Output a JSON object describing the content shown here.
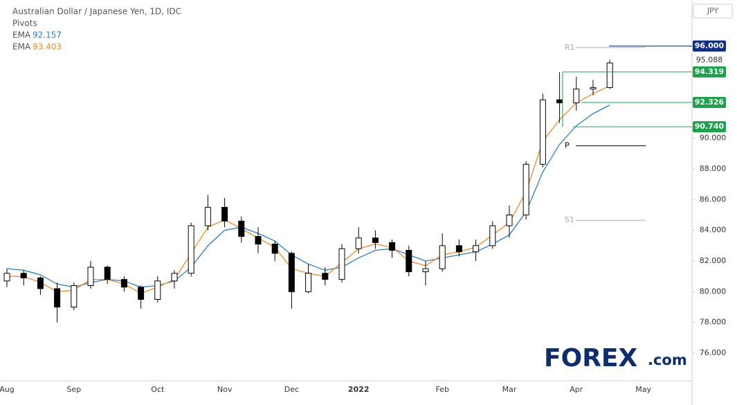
{
  "chart_data": {
    "type": "candlestick",
    "title": "Australian Dollar / Japanese Yen, 1D, IDC",
    "currency": "JPY",
    "categories": [
      "Aug",
      null,
      null,
      null,
      "Sep",
      null,
      null,
      null,
      null,
      "Oct",
      null,
      null,
      null,
      "Nov",
      null,
      null,
      null,
      "Dec",
      null,
      null,
      null,
      "2022",
      null,
      null,
      null,
      null,
      "Feb",
      null,
      null,
      null,
      "Mar",
      null,
      null,
      null,
      "Apr",
      null,
      null,
      null,
      "May",
      null,
      null
    ],
    "open": [
      80.7,
      81.2,
      80.9,
      80.2,
      79.0,
      80.4,
      81.6,
      80.8,
      80.3,
      79.5,
      80.7,
      81.2,
      84.3,
      85.5,
      84.6,
      83.6,
      83.1,
      82.5,
      80.0,
      81.2,
      80.8,
      82.8,
      83.5,
      83.2,
      82.7,
      81.3,
      81.5,
      83.0,
      82.6,
      83.0,
      84.3,
      85.0,
      88.3,
      92.5,
      92.3,
      93.2,
      93.3,
      null,
      null,
      null,
      null
    ],
    "high": [
      81.5,
      81.4,
      81.0,
      80.6,
      80.6,
      82.0,
      81.7,
      81.0,
      80.4,
      81.0,
      81.4,
      84.5,
      86.3,
      86.1,
      84.9,
      84.2,
      83.3,
      82.6,
      81.8,
      81.6,
      83.1,
      84.2,
      84.0,
      83.4,
      83.0,
      82.0,
      83.8,
      83.4,
      83.4,
      84.6,
      85.6,
      88.5,
      92.9,
      94.3,
      94.0,
      93.8,
      95.1,
      null,
      null,
      null,
      null
    ],
    "low": [
      80.3,
      80.4,
      79.8,
      78.0,
      78.8,
      80.2,
      80.5,
      80.0,
      78.9,
      79.3,
      80.2,
      81.0,
      84.0,
      84.2,
      83.2,
      82.5,
      82.0,
      78.9,
      79.9,
      80.4,
      80.6,
      82.5,
      82.8,
      82.2,
      81.0,
      80.4,
      81.3,
      82.3,
      82.0,
      82.8,
      83.5,
      84.7,
      88.1,
      91.0,
      91.8,
      92.8,
      93.2,
      null,
      null,
      null,
      null
    ],
    "close": [
      81.2,
      80.9,
      80.2,
      79.0,
      80.4,
      81.6,
      80.8,
      80.3,
      79.5,
      80.7,
      81.2,
      84.3,
      85.5,
      84.6,
      83.6,
      83.1,
      82.5,
      80.0,
      81.2,
      80.8,
      82.8,
      83.5,
      83.2,
      82.7,
      81.3,
      81.5,
      83.0,
      82.6,
      83.0,
      84.3,
      85.0,
      88.3,
      92.5,
      92.3,
      93.2,
      93.3,
      94.9,
      null,
      null,
      null,
      null
    ],
    "series": [
      {
        "name": "EMA",
        "color": "#2a7fc1",
        "values": [
          81.5,
          81.4,
          81.1,
          80.5,
          80.3,
          80.6,
          80.8,
          80.7,
          80.3,
          80.4,
          80.7,
          81.6,
          83.0,
          84.0,
          84.2,
          83.8,
          83.3,
          82.4,
          81.8,
          81.4,
          81.6,
          82.2,
          82.7,
          82.8,
          82.4,
          82.0,
          82.2,
          82.4,
          82.6,
          83.1,
          83.7,
          85.2,
          87.8,
          89.6,
          90.8,
          91.6,
          92.157,
          null,
          null,
          null,
          null
        ]
      },
      {
        "name": "EMA",
        "color": "#f08a24",
        "values": [
          81.0,
          81.0,
          80.6,
          80.0,
          80.1,
          80.8,
          80.8,
          80.5,
          79.9,
          80.3,
          80.8,
          82.5,
          84.2,
          84.7,
          84.1,
          83.5,
          82.9,
          81.5,
          81.2,
          81.0,
          81.9,
          82.8,
          83.1,
          82.9,
          82.0,
          81.7,
          82.4,
          82.6,
          82.9,
          83.7,
          84.5,
          86.5,
          89.8,
          91.2,
          92.3,
          92.9,
          93.403,
          null,
          null,
          null,
          null
        ]
      }
    ],
    "pivots": {
      "name": "Pivots",
      "color": "#aaaaaa",
      "levels": [
        {
          "name": "R1",
          "value": 95.9
        },
        {
          "name": "P",
          "value": 89.5,
          "color": "#000000"
        },
        {
          "name": "S1",
          "value": 84.65
        }
      ]
    },
    "price_levels": [
      {
        "value": 96,
        "label": "96.000",
        "color": "#0d2d8a"
      },
      {
        "value": 94.319,
        "label": "94.319",
        "color": "#1aa34a"
      },
      {
        "value": 92.326,
        "label": "92.326",
        "color": "#1aa34a"
      },
      {
        "value": 90.74,
        "label": "90.740",
        "color": "#1aa34a"
      }
    ],
    "last_price": {
      "value": 95.088,
      "label": "95.088"
    },
    "ylim": [
      74.2,
      99
    ],
    "yticks": [
      {
        "value": 76,
        "label": "76.000"
      },
      {
        "value": 78,
        "label": "78.000"
      },
      {
        "value": 80,
        "label": "80.000"
      },
      {
        "value": 82,
        "label": "82.000"
      },
      {
        "value": 84,
        "label": "84.000"
      },
      {
        "value": 86,
        "label": "86.000"
      },
      {
        "value": 88,
        "label": "88.000"
      },
      {
        "value": 90,
        "label": "90.000"
      }
    ],
    "logo": {
      "brand": "FOREX",
      "suffix": ".com"
    }
  }
}
